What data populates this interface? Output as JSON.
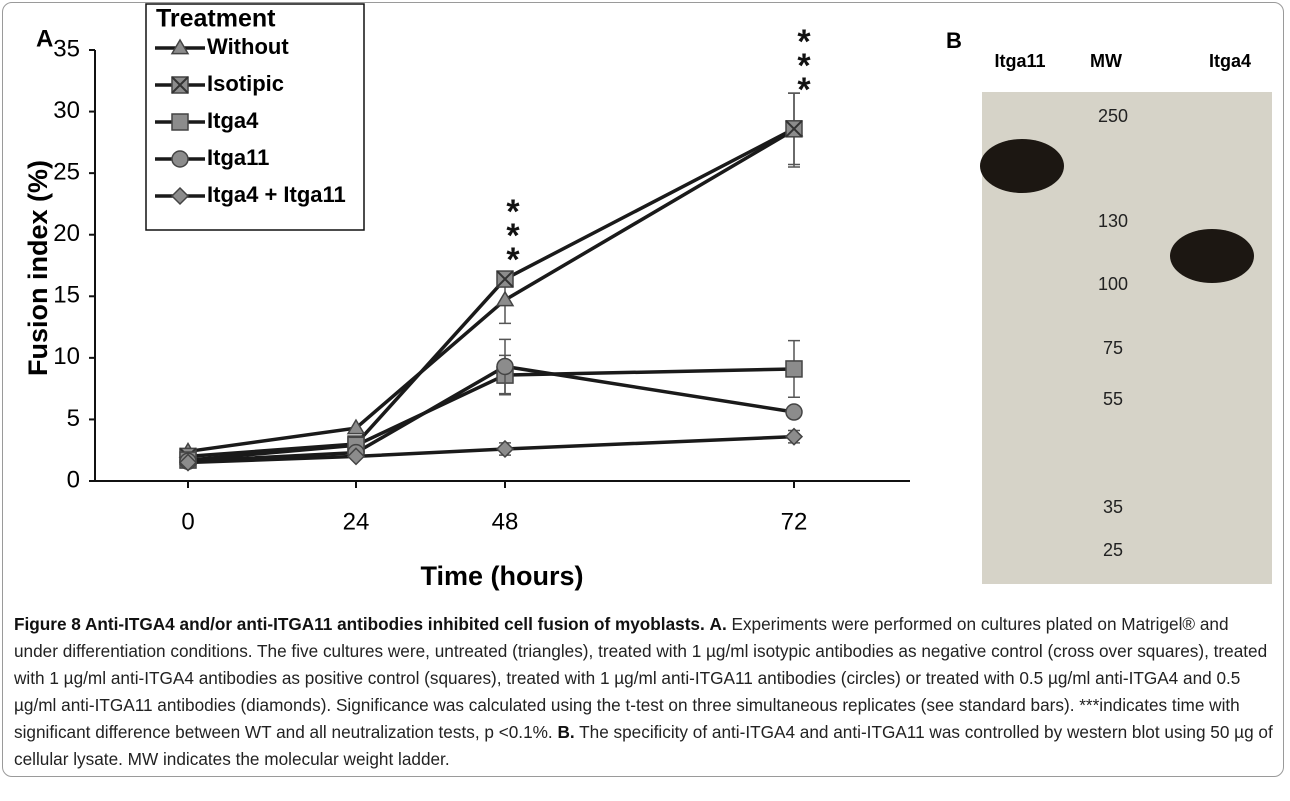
{
  "chart_data": {
    "type": "line",
    "panel_label": "A",
    "x_label": "Time (hours)",
    "y_label": "Fusion index (%)",
    "categories": [
      "0",
      "24",
      "48",
      "72"
    ],
    "ylim": [
      0,
      35
    ],
    "yticks": [
      0,
      5,
      10,
      15,
      20,
      25,
      30,
      35
    ],
    "legend_title": "Treatment",
    "legend_position": "upper-left",
    "series": [
      {
        "name": "Without",
        "color": "#1a1a1a",
        "marker": "triangle",
        "values": [
          2.4,
          4.3,
          14.7,
          28.5
        ],
        "errors": [
          null,
          null,
          1.9,
          3.0
        ]
      },
      {
        "name": "Isotipic",
        "color": "#1a1a1a",
        "marker": "x-square",
        "values": [
          2.0,
          3.0,
          16.4,
          28.6
        ],
        "errors": [
          null,
          null,
          null,
          2.9
        ]
      },
      {
        "name": "Itga4",
        "color": "#1a1a1a",
        "marker": "square",
        "values": [
          1.7,
          2.9,
          8.6,
          9.1
        ],
        "errors": [
          null,
          null,
          1.6,
          2.3
        ]
      },
      {
        "name": "Itga11",
        "color": "#1a1a1a",
        "marker": "circle",
        "values": [
          1.6,
          2.3,
          9.3,
          5.6
        ],
        "errors": [
          null,
          null,
          2.2,
          null
        ]
      },
      {
        "name": "Itga4 + Itga11",
        "color": "#1a1a1a",
        "marker": "diamond",
        "values": [
          1.5,
          2.0,
          2.6,
          3.6
        ],
        "errors": [
          null,
          null,
          0.5,
          0.5
        ]
      }
    ],
    "annotations": [
      "***",
      "***"
    ]
  },
  "panel_b": {
    "label": "B",
    "lanes": [
      "Itga11",
      "MW",
      "Itga4"
    ],
    "mw_markers": [
      "250",
      "130",
      "100",
      "75",
      "55",
      "35",
      "25"
    ]
  },
  "caption": {
    "title": "Figure 8 Anti-ITGA4 and/or anti-ITGA11 antibodies inhibited cell fusion of myoblasts.",
    "a_label": "A.",
    "a_text": "Experiments were performed on cultures plated on Matrigel® and under differentiation conditions. The five cultures were, untreated (triangles), treated with 1 µg/ml isotypic antibodies as negative control (cross over squares), treated with 1 µg/ml anti-ITGA4 antibodies as positive control (squares), treated with 1 µg/ml anti-ITGA11 antibodies (circles) or treated with 0.5 µg/ml anti-ITGA4 and 0.5 µg/ml anti-ITGA11 antibodies (diamonds). Significance was calculated using the t-test on three simultaneous replicates (see standard bars). ***indicates time with significant difference between WT and all neutralization tests, p <0.1%.",
    "b_label": "B.",
    "b_text": "The specificity of anti-ITGA4 and anti-ITGA11 was controlled by western blot using 50 µg of cellular lysate. MW indicates the molecular weight ladder."
  }
}
